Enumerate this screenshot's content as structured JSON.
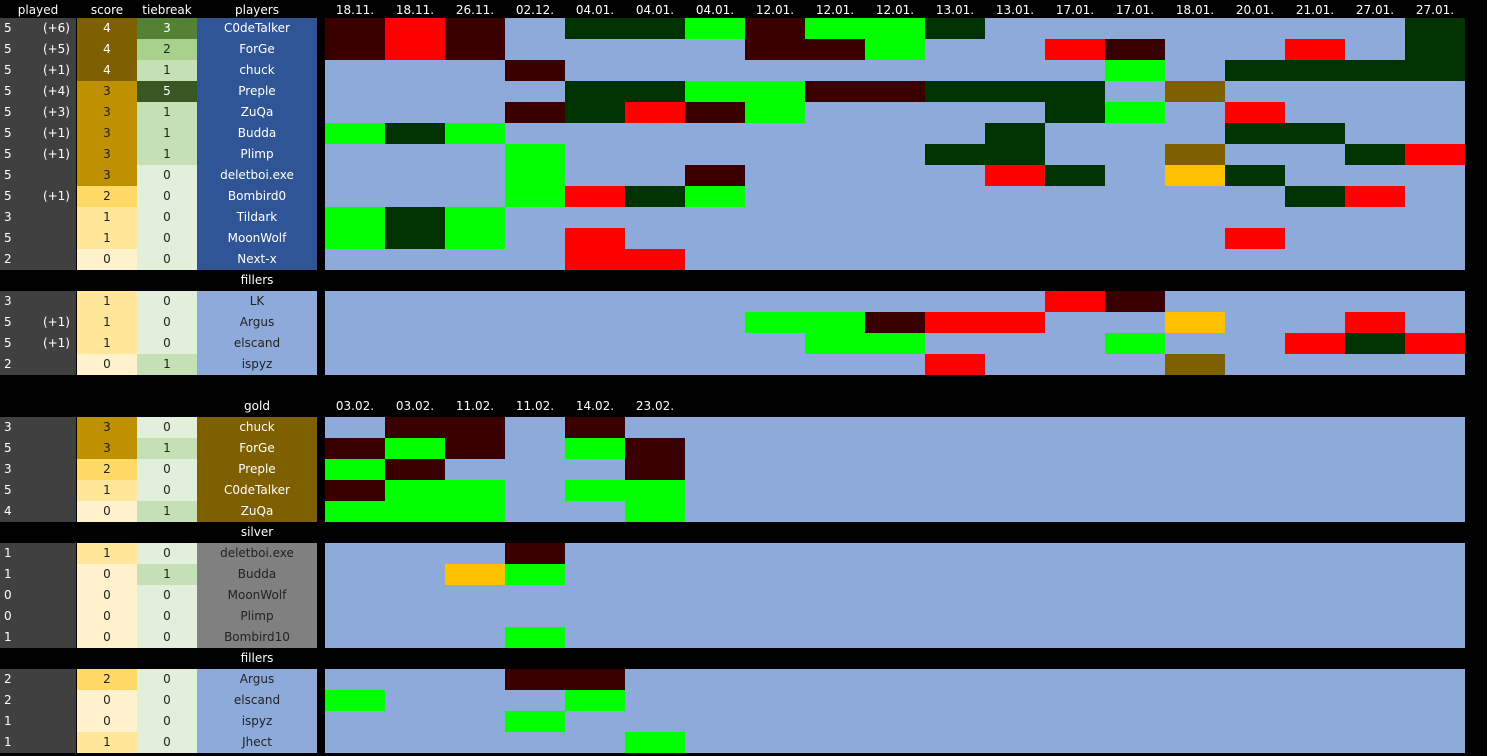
{
  "colors": {
    "background": "#000000",
    "played_bg": "#404040",
    "grid_bg": "#8eaadb",
    "players_bg": "#2f5597",
    "gold_bg": "#7f6000",
    "silver_bg": "#808080",
    "filler_bg": "#8eaadb",
    "cell": {
      "G": "#00ff00",
      "D": "#003300",
      "R": "#ff0000",
      "M": "#3a0000",
      "Y": "#ffc000",
      "B": "#7f6000"
    }
  },
  "headers": {
    "played": "played",
    "score": "score",
    "tiebreak": "tiebreak",
    "players": "players",
    "dates": [
      "18.11.",
      "18.11.",
      "26.11.",
      "02.12.",
      "04.01.",
      "04.01.",
      "04.01.",
      "12.01.",
      "12.01.",
      "12.01.",
      "13.01.",
      "13.01.",
      "17.01.",
      "17.01.",
      "18.01.",
      "20.01.",
      "21.01.",
      "27.01.",
      "27.01."
    ]
  },
  "main_rows": [
    {
      "played": "5",
      "bonus": "(+6)",
      "score": "4",
      "tiebreak": "3",
      "player": "C0deTalker",
      "scoreColor": "#7f6000",
      "tbColor": "#548235",
      "cells": [
        "M",
        "R",
        "M",
        ".",
        "D",
        "D",
        "G",
        "M",
        "G",
        "G",
        "D",
        ".",
        ".",
        ".",
        ".",
        ".",
        ".",
        ".",
        "D"
      ]
    },
    {
      "played": "5",
      "bonus": "(+5)",
      "score": "4",
      "tiebreak": "2",
      "player": "ForGe",
      "scoreColor": "#7f6000",
      "tbColor": "#a9d18e",
      "cells": [
        "M",
        "R",
        "M",
        ".",
        ".",
        ".",
        ".",
        "M",
        "M",
        "G",
        ".",
        ".",
        "R",
        "M",
        ".",
        ".",
        "R",
        ".",
        "D"
      ]
    },
    {
      "played": "5",
      "bonus": "(+1)",
      "score": "4",
      "tiebreak": "1",
      "player": "chuck",
      "scoreColor": "#7f6000",
      "tbColor": "#c5e0b4",
      "cells": [
        ".",
        ".",
        ".",
        "M",
        ".",
        ".",
        ".",
        ".",
        ".",
        ".",
        ".",
        ".",
        ".",
        "G",
        ".",
        "D",
        "D",
        "D",
        "D"
      ]
    },
    {
      "played": "5",
      "bonus": "(+4)",
      "score": "3",
      "tiebreak": "5",
      "player": "Preple",
      "scoreColor": "#bf9000",
      "tbColor": "#385723",
      "cells": [
        ".",
        ".",
        ".",
        ".",
        "D",
        "D",
        "G",
        "G",
        "M",
        "M",
        "D",
        "D",
        "D",
        ".",
        "B",
        ".",
        ".",
        ".",
        "."
      ]
    },
    {
      "played": "5",
      "bonus": "(+3)",
      "score": "3",
      "tiebreak": "1",
      "player": "ZuQa",
      "scoreColor": "#bf9000",
      "tbColor": "#c5e0b4",
      "cells": [
        ".",
        ".",
        ".",
        "M",
        "D",
        "R",
        "M",
        "G",
        ".",
        ".",
        ".",
        ".",
        "D",
        "G",
        ".",
        "R",
        ".",
        ".",
        "."
      ]
    },
    {
      "played": "5",
      "bonus": "(+1)",
      "score": "3",
      "tiebreak": "1",
      "player": "Budda",
      "scoreColor": "#bf9000",
      "tbColor": "#c5e0b4",
      "cells": [
        "G",
        "D",
        "G",
        ".",
        ".",
        ".",
        ".",
        ".",
        ".",
        ".",
        ".",
        "D",
        ".",
        ".",
        ".",
        "D",
        "D",
        ".",
        "."
      ]
    },
    {
      "played": "5",
      "bonus": "(+1)",
      "score": "3",
      "tiebreak": "1",
      "player": "Plimp",
      "scoreColor": "#bf9000",
      "tbColor": "#c5e0b4",
      "cells": [
        ".",
        ".",
        ".",
        "G",
        ".",
        ".",
        ".",
        ".",
        ".",
        ".",
        "D",
        "D",
        ".",
        ".",
        "B",
        ".",
        ".",
        "D",
        "R"
      ]
    },
    {
      "played": "5",
      "bonus": "",
      "score": "3",
      "tiebreak": "0",
      "player": "deletboi.exe",
      "scoreColor": "#bf9000",
      "tbColor": "#e2efda",
      "cells": [
        ".",
        ".",
        ".",
        "G",
        ".",
        ".",
        "M",
        ".",
        ".",
        ".",
        ".",
        "R",
        "D",
        ".",
        "Y",
        "D",
        ".",
        ".",
        "."
      ]
    },
    {
      "played": "5",
      "bonus": "(+1)",
      "score": "2",
      "tiebreak": "0",
      "player": "Bombird0",
      "scoreColor": "#ffd966",
      "tbColor": "#e2efda",
      "cells": [
        ".",
        ".",
        ".",
        "G",
        "R",
        "D",
        "G",
        ".",
        ".",
        ".",
        ".",
        ".",
        ".",
        ".",
        ".",
        ".",
        "D",
        "R",
        "."
      ]
    },
    {
      "played": "3",
      "bonus": "",
      "score": "1",
      "tiebreak": "0",
      "player": "Tildark",
      "scoreColor": "#ffe699",
      "tbColor": "#e2efda",
      "cells": [
        "G",
        "D",
        "G",
        ".",
        ".",
        ".",
        ".",
        ".",
        ".",
        ".",
        ".",
        ".",
        ".",
        ".",
        ".",
        ".",
        ".",
        ".",
        "."
      ]
    },
    {
      "played": "5",
      "bonus": "",
      "score": "1",
      "tiebreak": "0",
      "player": "MoonWolf",
      "scoreColor": "#ffe699",
      "tbColor": "#e2efda",
      "cells": [
        "G",
        "D",
        "G",
        ".",
        "R",
        ".",
        ".",
        ".",
        ".",
        ".",
        ".",
        ".",
        ".",
        ".",
        ".",
        "R",
        ".",
        ".",
        "."
      ]
    },
    {
      "played": "2",
      "bonus": "",
      "score": "0",
      "tiebreak": "0",
      "player": "Next-x",
      "scoreColor": "#fff2cc",
      "tbColor": "#e2efda",
      "cells": [
        ".",
        ".",
        ".",
        ".",
        "R",
        "R",
        ".",
        ".",
        ".",
        ".",
        ".",
        ".",
        ".",
        ".",
        ".",
        ".",
        ".",
        ".",
        "."
      ]
    }
  ],
  "fillers_label": "fillers",
  "filler_rows": [
    {
      "played": "3",
      "bonus": "",
      "score": "1",
      "tiebreak": "0",
      "player": "LK",
      "scoreColor": "#ffe699",
      "tbColor": "#e2efda",
      "cells": [
        ".",
        ".",
        ".",
        ".",
        ".",
        ".",
        ".",
        ".",
        ".",
        ".",
        ".",
        ".",
        "R",
        "M",
        ".",
        ".",
        ".",
        ".",
        "."
      ]
    },
    {
      "played": "5",
      "bonus": "(+1)",
      "score": "1",
      "tiebreak": "0",
      "player": "Argus",
      "scoreColor": "#ffe699",
      "tbColor": "#e2efda",
      "cells": [
        ".",
        ".",
        ".",
        ".",
        ".",
        ".",
        ".",
        "G",
        "G",
        "M",
        "R",
        "R",
        ".",
        ".",
        "Y",
        ".",
        ".",
        "R",
        "."
      ]
    },
    {
      "played": "5",
      "bonus": "(+1)",
      "score": "1",
      "tiebreak": "0",
      "player": "elscand",
      "scoreColor": "#ffe699",
      "tbColor": "#e2efda",
      "cells": [
        ".",
        ".",
        ".",
        ".",
        ".",
        ".",
        ".",
        ".",
        "G",
        "G",
        ".",
        ".",
        ".",
        "G",
        ".",
        ".",
        "R",
        "D",
        "R"
      ]
    },
    {
      "played": "2",
      "bonus": "",
      "score": "0",
      "tiebreak": "1",
      "player": "ispyz",
      "scoreColor": "#fff2cc",
      "tbColor": "#c5e0b4",
      "cells": [
        ".",
        ".",
        ".",
        ".",
        ".",
        ".",
        ".",
        ".",
        ".",
        ".",
        "R",
        ".",
        ".",
        ".",
        "B",
        ".",
        ".",
        ".",
        "."
      ]
    }
  ],
  "gold_label": "gold",
  "gold_dates": [
    "03.02.",
    "03.02.",
    "11.02.",
    "11.02.",
    "14.02.",
    "23.02."
  ],
  "gold_rows": [
    {
      "played": "3",
      "score": "3",
      "tiebreak": "0",
      "player": "chuck",
      "scoreColor": "#bf9000",
      "tbColor": "#e2efda",
      "cells": [
        ".",
        "M",
        "M",
        ".",
        "M",
        "."
      ]
    },
    {
      "played": "5",
      "score": "3",
      "tiebreak": "1",
      "player": "ForGe",
      "scoreColor": "#bf9000",
      "tbColor": "#c5e0b4",
      "cells": [
        "M",
        "G",
        "M",
        ".",
        "G",
        "M"
      ]
    },
    {
      "played": "3",
      "score": "2",
      "tiebreak": "0",
      "player": "Preple",
      "scoreColor": "#ffd966",
      "tbColor": "#e2efda",
      "cells": [
        "G",
        "M",
        ".",
        ".",
        ".",
        "M"
      ]
    },
    {
      "played": "5",
      "score": "1",
      "tiebreak": "0",
      "player": "C0deTalker",
      "scoreColor": "#ffe699",
      "tbColor": "#e2efda",
      "cells": [
        "M",
        "G",
        "G",
        ".",
        "G",
        "G"
      ]
    },
    {
      "played": "4",
      "score": "0",
      "tiebreak": "1",
      "player": "ZuQa",
      "scoreColor": "#fff2cc",
      "tbColor": "#c5e0b4",
      "cells": [
        "G",
        "G",
        "G",
        ".",
        ".",
        "G"
      ]
    }
  ],
  "silver_label": "silver",
  "silver_rows": [
    {
      "played": "1",
      "score": "1",
      "tiebreak": "0",
      "player": "deletboi.exe",
      "scoreColor": "#ffe699",
      "tbColor": "#e2efda",
      "cells": [
        ".",
        ".",
        ".",
        "M",
        ".",
        "."
      ]
    },
    {
      "played": "1",
      "score": "0",
      "tiebreak": "1",
      "player": "Budda",
      "scoreColor": "#fff2cc",
      "tbColor": "#c5e0b4",
      "cells": [
        ".",
        ".",
        "Y",
        "G",
        ".",
        "."
      ]
    },
    {
      "played": "0",
      "score": "0",
      "tiebreak": "0",
      "player": "MoonWolf",
      "scoreColor": "#fff2cc",
      "tbColor": "#e2efda",
      "cells": [
        ".",
        ".",
        ".",
        ".",
        ".",
        "."
      ]
    },
    {
      "played": "0",
      "score": "0",
      "tiebreak": "0",
      "player": "Plimp",
      "scoreColor": "#fff2cc",
      "tbColor": "#e2efda",
      "cells": [
        ".",
        ".",
        ".",
        ".",
        ".",
        "."
      ]
    },
    {
      "played": "1",
      "score": "0",
      "tiebreak": "0",
      "player": "Bombird10",
      "scoreColor": "#fff2cc",
      "tbColor": "#e2efda",
      "cells": [
        ".",
        ".",
        ".",
        "G",
        ".",
        "."
      ]
    }
  ],
  "fillers2_label": "fillers",
  "filler2_rows": [
    {
      "played": "2",
      "score": "2",
      "tiebreak": "0",
      "player": "Argus",
      "scoreColor": "#ffd966",
      "tbColor": "#e2efda",
      "cells": [
        ".",
        ".",
        ".",
        "M",
        "M",
        "."
      ]
    },
    {
      "played": "2",
      "score": "0",
      "tiebreak": "0",
      "player": "elscand",
      "scoreColor": "#fff2cc",
      "tbColor": "#e2efda",
      "cells": [
        "G",
        ".",
        ".",
        ".",
        "G",
        "."
      ]
    },
    {
      "played": "1",
      "score": "0",
      "tiebreak": "0",
      "player": "ispyz",
      "scoreColor": "#fff2cc",
      "tbColor": "#e2efda",
      "cells": [
        ".",
        ".",
        ".",
        "G",
        ".",
        "."
      ]
    },
    {
      "played": "1",
      "score": "1",
      "tiebreak": "0",
      "player": "Jhect",
      "scoreColor": "#ffe699",
      "tbColor": "#e2efda",
      "cells": [
        ".",
        ".",
        ".",
        ".",
        ".",
        "G"
      ]
    }
  ]
}
